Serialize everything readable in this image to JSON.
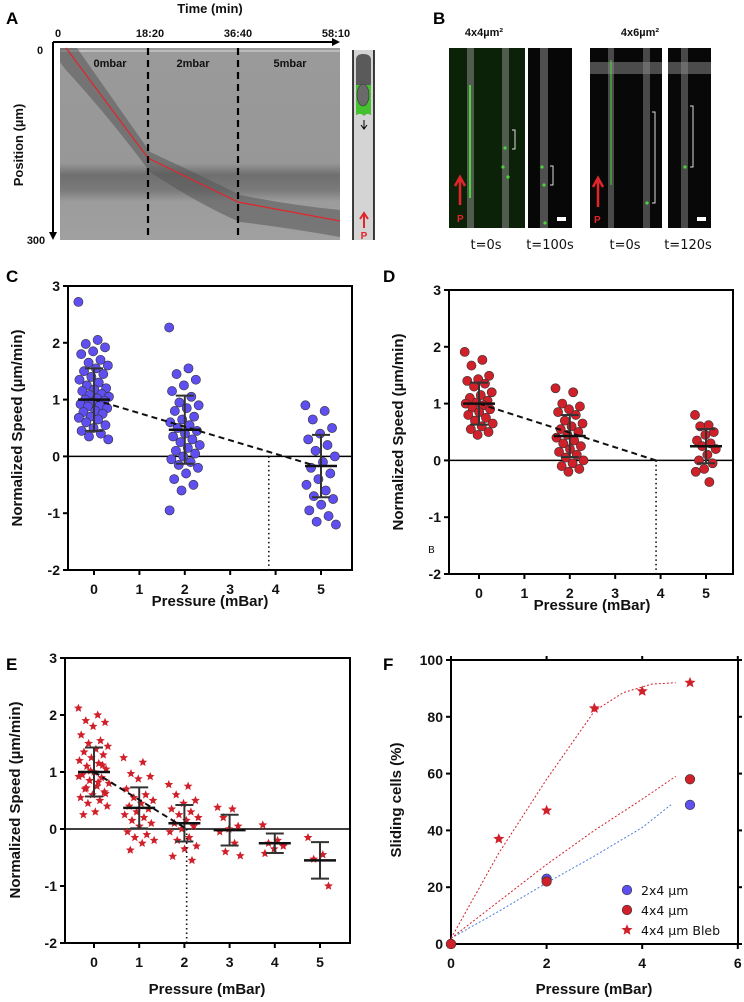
{
  "panel_a": {
    "label": "A",
    "x_title": "Time (min)",
    "time_ticks": [
      "0",
      "18:20",
      "36:40",
      "58:10"
    ],
    "y_title": "Position (µm)",
    "pos_ticks": [
      "0",
      "300"
    ],
    "segments": [
      "0mbar",
      "2mbar",
      "5mbar"
    ],
    "pressure_label": "P",
    "colors": {
      "trajectory": "#e0262a",
      "fluorescence": "#4cd43a"
    }
  },
  "panel_b": {
    "label": "B",
    "groups": [
      {
        "title": "4x4µm²",
        "times": [
          "t=0s",
          "t=100s"
        ]
      },
      {
        "title": "4x6µm²",
        "times": [
          "t=0s",
          "t=120s"
        ]
      }
    ],
    "pressure_label": "P"
  },
  "panel_labels": {
    "c": "C",
    "d": "D",
    "e": "E",
    "f": "F"
  },
  "stray_label_d": "B",
  "chart_data": [
    {
      "panel": "C",
      "type": "scatter",
      "marker": "circle",
      "color": "#5f4ff0",
      "xlabel": "Pressure (mBar)",
      "ylabel": "Normalized Speed (µm/min)",
      "xticks": [
        0,
        1,
        2,
        3,
        4,
        5
      ],
      "yticks": [
        -2,
        -1,
        0,
        1,
        2,
        3
      ],
      "ylim": [
        -2,
        3
      ],
      "groups": [
        {
          "x": 0,
          "mean": 1.0,
          "sd": 0.55,
          "values": [
            2.72,
            2.05,
            1.98,
            1.92,
            1.85,
            1.8,
            1.7,
            1.65,
            1.6,
            1.55,
            1.5,
            1.45,
            1.4,
            1.35,
            1.3,
            1.25,
            1.2,
            1.18,
            1.15,
            1.1,
            1.08,
            1.05,
            1.02,
            1.0,
            0.98,
            0.95,
            0.92,
            0.9,
            0.88,
            0.85,
            0.8,
            0.78,
            0.75,
            0.7,
            0.68,
            0.65,
            0.6,
            0.55,
            0.5,
            0.45,
            0.4,
            0.35,
            0.3
          ]
        },
        {
          "x": 2,
          "mean": 0.47,
          "sd": 0.6,
          "values": [
            2.27,
            1.55,
            1.45,
            1.35,
            1.25,
            1.15,
            1.05,
            0.95,
            0.9,
            0.85,
            0.8,
            0.7,
            0.65,
            0.6,
            0.55,
            0.5,
            0.45,
            0.4,
            0.35,
            0.3,
            0.25,
            0.2,
            0.15,
            0.1,
            0.05,
            0,
            -0.05,
            -0.1,
            -0.15,
            -0.2,
            -0.3,
            -0.4,
            -0.5,
            -0.6,
            -0.95
          ]
        },
        {
          "x": 5,
          "mean": -0.17,
          "sd": 0.55,
          "values": [
            0.9,
            0.8,
            0.65,
            0.5,
            0.4,
            0.3,
            0.2,
            0.1,
            0,
            -0.1,
            -0.2,
            -0.3,
            -0.4,
            -0.5,
            -0.6,
            -0.7,
            -0.75,
            -0.85,
            -0.95,
            -1.05,
            -1.15,
            -1.2
          ]
        }
      ],
      "trend": [
        [
          0,
          1.0
        ],
        [
          4.9,
          -0.17
        ]
      ],
      "intercept_x": 3.85
    },
    {
      "panel": "D",
      "type": "scatter",
      "marker": "circle",
      "color": "#d0202a",
      "xlabel": "Pressure (mBar)",
      "ylabel": "Normalized Speed (µm/min)",
      "xticks": [
        0,
        1,
        2,
        3,
        4,
        5
      ],
      "yticks": [
        -2,
        -1,
        0,
        1,
        2,
        3
      ],
      "ylim": [
        -2,
        3
      ],
      "groups": [
        {
          "x": 0,
          "mean": 1.0,
          "sd": 0.37,
          "values": [
            1.91,
            1.77,
            1.67,
            1.49,
            1.43,
            1.4,
            1.35,
            1.3,
            1.2,
            1.15,
            1.1,
            1.05,
            1.02,
            1.0,
            0.97,
            0.93,
            0.9,
            0.85,
            0.8,
            0.75,
            0.7,
            0.65,
            0.6,
            0.55,
            0.5,
            0.45
          ]
        },
        {
          "x": 2,
          "mean": 0.43,
          "sd": 0.37,
          "values": [
            1.27,
            1.2,
            1.0,
            0.95,
            0.9,
            0.85,
            0.8,
            0.7,
            0.65,
            0.6,
            0.55,
            0.5,
            0.45,
            0.4,
            0.35,
            0.3,
            0.25,
            0.2,
            0.15,
            0.1,
            0.05,
            0,
            -0.05,
            -0.1,
            -0.15,
            -0.2
          ]
        },
        {
          "x": 5,
          "mean": 0.25,
          "sd": 0.3,
          "values": [
            0.8,
            0.62,
            0.6,
            0.5,
            0.45,
            0.35,
            0.3,
            0.25,
            0.2,
            0.1,
            0,
            -0.05,
            -0.15,
            -0.2,
            -0.38
          ]
        }
      ],
      "trend": [
        [
          0,
          1.0
        ],
        [
          3.9,
          0
        ]
      ],
      "intercept_x": 3.9
    },
    {
      "panel": "E",
      "type": "scatter",
      "marker": "star",
      "color": "#d0202a",
      "xlabel": "Pressure (mBar)",
      "ylabel": "Normalized Speed (µm/min)",
      "xticks": [
        0,
        1,
        2,
        3,
        4,
        5
      ],
      "yticks": [
        -2,
        -1,
        0,
        1,
        2,
        3
      ],
      "ylim": [
        -2,
        3
      ],
      "groups": [
        {
          "x": 0,
          "mean": 1.0,
          "sd": 0.43,
          "values": [
            2.12,
            2.0,
            1.9,
            1.87,
            1.8,
            1.65,
            1.55,
            1.5,
            1.45,
            1.4,
            1.35,
            1.3,
            1.25,
            1.2,
            1.15,
            1.1,
            1.05,
            1.0,
            0.95,
            0.9,
            0.85,
            0.8,
            0.75,
            0.7,
            0.65,
            0.6,
            0.55,
            0.5,
            0.45,
            0.4,
            0.3,
            0.25,
            1.12,
            1.02,
            0.92,
            0.82,
            0.72,
            0.62
          ]
        },
        {
          "x": 1,
          "mean": 0.37,
          "sd": 0.36,
          "values": [
            1.25,
            1.17,
            0.97,
            0.92,
            0.88,
            0.7,
            0.6,
            0.55,
            0.5,
            0.45,
            0.4,
            0.35,
            0.3,
            0.25,
            0.2,
            0.15,
            0.1,
            0.05,
            -0.05,
            -0.1,
            -0.15,
            -0.2,
            -0.25,
            -0.37
          ]
        },
        {
          "x": 2,
          "mean": 0.1,
          "sd": 0.32,
          "values": [
            0.78,
            0.75,
            0.6,
            0.5,
            0.45,
            0.35,
            0.3,
            0.25,
            0.2,
            0.15,
            0.1,
            0.05,
            0,
            -0.05,
            -0.15,
            -0.2,
            -0.3,
            -0.35,
            -0.48,
            -0.55
          ]
        },
        {
          "x": 3,
          "mean": -0.02,
          "sd": 0.27,
          "values": [
            0.38,
            0.35,
            0.2,
            0.05,
            0,
            -0.05,
            -0.25,
            -0.4,
            -0.47
          ]
        },
        {
          "x": 4,
          "mean": -0.25,
          "sd": 0.17,
          "values": [
            0.07,
            -0.2,
            -0.25,
            -0.3,
            -0.35,
            -0.43
          ]
        },
        {
          "x": 5,
          "mean": -0.55,
          "sd": 0.32,
          "values": [
            -0.15,
            -0.45,
            -0.53,
            -1.0
          ]
        }
      ],
      "trend": [
        [
          0,
          1.0
        ],
        [
          2.05,
          0
        ]
      ],
      "intercept_x": 2.05
    },
    {
      "panel": "F",
      "type": "scatter",
      "xlabel": "Pressure (mBar)",
      "ylabel": "Sliding cells (%)",
      "xticks": [
        0,
        2,
        4,
        6
      ],
      "yticks": [
        0,
        20,
        40,
        60,
        80,
        100
      ],
      "xlim": [
        0,
        6
      ],
      "ylim": [
        0,
        100
      ],
      "legend": "bottom-right",
      "series": [
        {
          "name": "2x4 µm",
          "marker": "circle",
          "color": "#5f4ff0",
          "x": [
            0,
            2,
            5
          ],
          "y": [
            0,
            23,
            49
          ],
          "fit": [
            [
              0,
              2
            ],
            [
              1,
              11.5
            ],
            [
              2,
              21.5
            ],
            [
              3,
              31
            ],
            [
              4,
              41
            ],
            [
              4.6,
              49
            ]
          ]
        },
        {
          "name": "4x4 µm",
          "marker": "circle",
          "color": "#d0202a",
          "x": [
            0,
            2,
            5
          ],
          "y": [
            0,
            22,
            58
          ],
          "fit": [
            [
              0,
              2
            ],
            [
              1,
              15
            ],
            [
              2,
              28
            ],
            [
              3,
              40
            ],
            [
              4,
              51
            ],
            [
              4.7,
              59
            ]
          ]
        },
        {
          "name": "4x4 µm Bleb",
          "marker": "star",
          "color": "#d0202a",
          "x": [
            0,
            1,
            2,
            3,
            4,
            5
          ],
          "y": [
            0,
            37,
            47,
            83,
            89,
            92
          ],
          "fit": [
            [
              0,
              2
            ],
            [
              1,
              32
            ],
            [
              2,
              58
            ],
            [
              3,
              82
            ],
            [
              3.6,
              88.5
            ],
            [
              4.2,
              91.5
            ],
            [
              4.7,
              92
            ]
          ]
        }
      ]
    }
  ]
}
